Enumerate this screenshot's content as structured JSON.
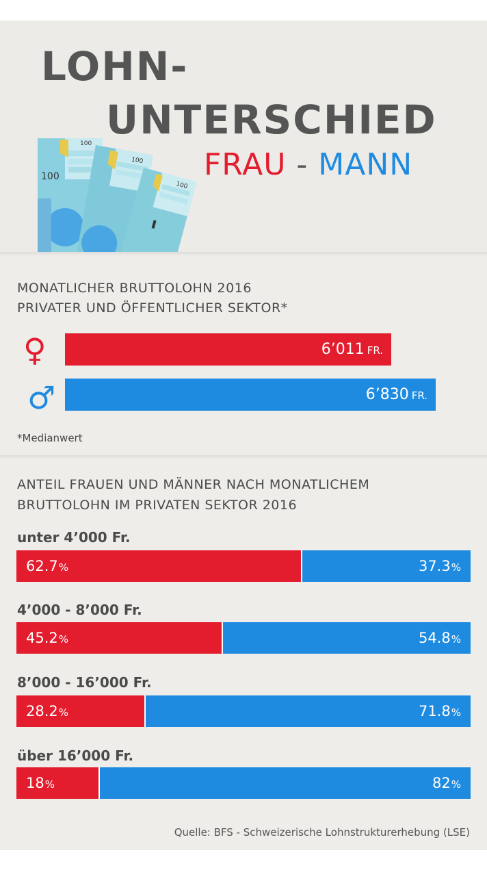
{
  "title": {
    "line1": "LOHN-",
    "line2": "UNTERSCHIED",
    "frau": "FRAU",
    "dash": "-",
    "mann": "MANN"
  },
  "colors": {
    "frau": "#e31c2e",
    "mann": "#1f8be0",
    "text": "#555555",
    "panel": "#ecebe8"
  },
  "illustration": {
    "note_label": "100"
  },
  "salary_section": {
    "heading_line1": "MONATLICHER BRUTTOLOHN 2016",
    "heading_line2": "PRIVATER UND ÖFFENTLICHER SEKTOR*",
    "female_icon": "♀",
    "male_icon": "♂",
    "unit": "FR.",
    "footnote": "*Medianwert"
  },
  "share_section": {
    "heading_line1": "ANTEIL FRAUEN UND MÄNNER NACH MONATLICHEM",
    "heading_line2": "BRUTTOLOHN IM PRIVATEN SEKTOR 2016",
    "percent_sign": "%"
  },
  "source": "Quelle: BFS - Schweizerische Lohnstrukturerhebung (LSE)",
  "chart_data": [
    {
      "type": "bar",
      "title": "MONATLICHER BRUTTOLOHN 2016 PRIVATER UND ÖFFENTLICHER SEKTOR*",
      "categories": [
        "♀",
        "♂"
      ],
      "values": [
        6011,
        6830
      ],
      "value_labels": [
        "6’011",
        "6’830"
      ],
      "unit": "FR.",
      "orientation": "horizontal",
      "xlim": [
        0,
        7470
      ],
      "grid": false
    },
    {
      "type": "bar",
      "stacked": true,
      "orientation": "horizontal",
      "title": "ANTEIL FRAUEN UND MÄNNER NACH MONATLICHEM BRUTTOLOHN IM PRIVATEN SEKTOR 2016",
      "categories": [
        "unter 4’000 Fr.",
        "4’000 - 8’000 Fr.",
        "8’000 - 16’000 Fr.",
        "über 16’000 Fr."
      ],
      "series": [
        {
          "values": [
            62.7,
            45.2,
            28.2,
            18
          ],
          "labels": [
            "62.7",
            "45.2",
            "28.2",
            "18"
          ],
          "color": "#e31c2e"
        },
        {
          "values": [
            37.3,
            54.8,
            71.8,
            82
          ],
          "labels": [
            "37.3",
            "54.8",
            "71.8",
            "82"
          ],
          "color": "#1f8be0"
        }
      ],
      "xlim": [
        0,
        100
      ],
      "grid": false
    }
  ]
}
